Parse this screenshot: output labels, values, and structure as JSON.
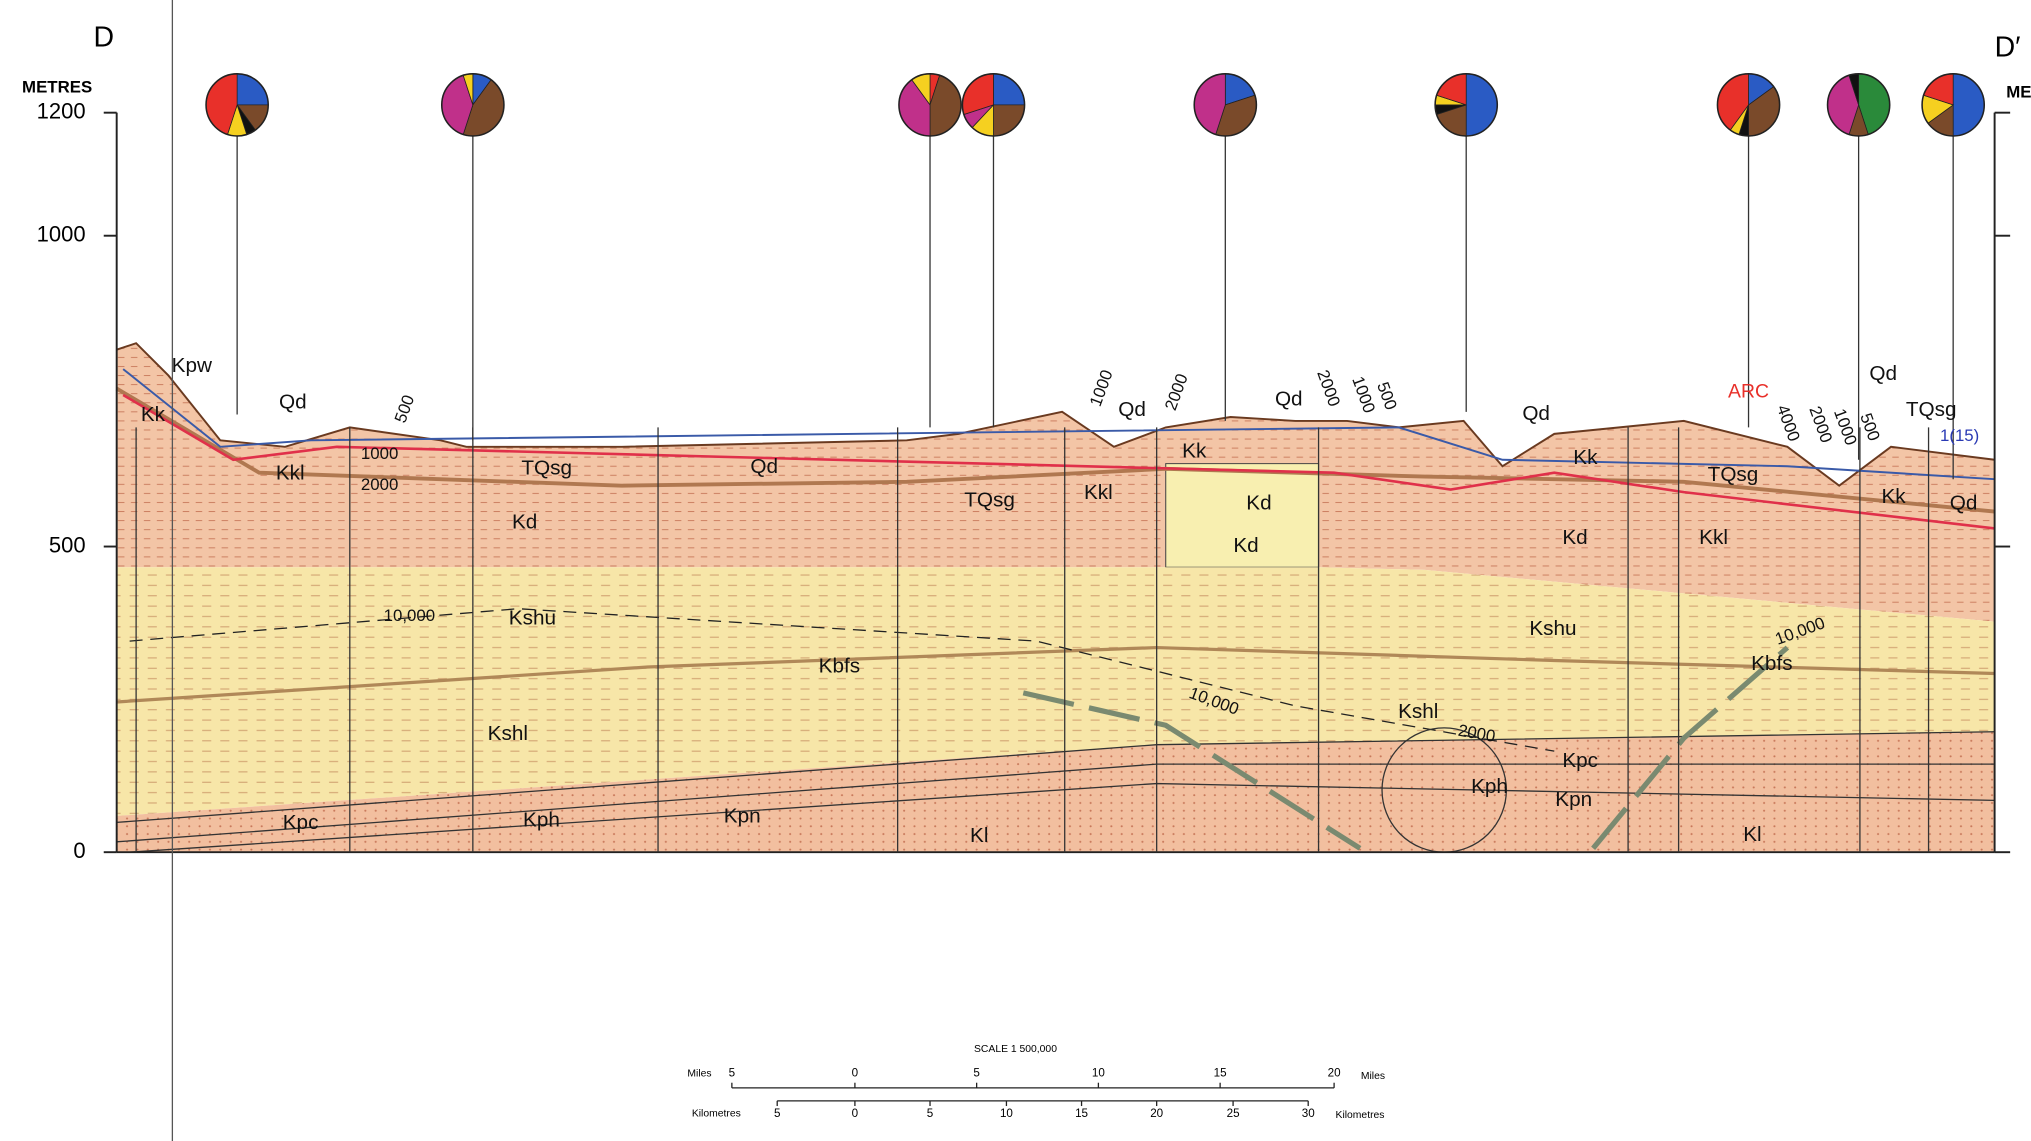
{
  "header": {
    "left_label": "D",
    "right_label": "D′",
    "axis_title": "METRES",
    "right_axis_title": "METRES"
  },
  "axis_ticks": [
    "1200",
    "1000",
    "500",
    "0"
  ],
  "pies": [
    {
      "values": [
        25,
        15,
        5,
        10,
        45
      ],
      "colors": [
        "#2a5bc4",
        "#7a4a2a",
        "#111111",
        "#f5d020",
        "#e8302a"
      ]
    },
    {
      "values": [
        10,
        45,
        40,
        5
      ],
      "colors": [
        "#2a5bc4",
        "#7a4a2a",
        "#c0308a",
        "#f5d020"
      ]
    },
    {
      "values": [
        5,
        45,
        40,
        10
      ],
      "colors": [
        "#e8302a",
        "#7a4a2a",
        "#c0308a",
        "#f5d020"
      ]
    },
    {
      "values": [
        25,
        25,
        12,
        8,
        30
      ],
      "colors": [
        "#2a5bc4",
        "#7a4a2a",
        "#f5d020",
        "#c0308a",
        "#e8302a"
      ]
    },
    {
      "values": [
        20,
        35,
        45
      ],
      "colors": [
        "#2a5bc4",
        "#7a4a2a",
        "#c0308a"
      ]
    },
    {
      "values": [
        50,
        20,
        5,
        5,
        20
      ],
      "colors": [
        "#2a5bc4",
        "#7a4a2a",
        "#111111",
        "#f5d020",
        "#e8302a"
      ]
    },
    {
      "values": [
        15,
        35,
        5,
        5,
        40
      ],
      "colors": [
        "#2a5bc4",
        "#7a4a2a",
        "#111111",
        "#f5d020",
        "#e8302a"
      ]
    },
    {
      "values": [
        45,
        10,
        40,
        5
      ],
      "colors": [
        "#2a8a3a",
        "#7a4a2a",
        "#c0308a",
        "#111111"
      ]
    },
    {
      "values": [
        50,
        15,
        15,
        20
      ],
      "colors": [
        "#2a5bc4",
        "#7a4a2a",
        "#f5d020",
        "#e8302a"
      ]
    }
  ],
  "labels": [
    "Kpw",
    "Kk",
    "Qd",
    "Kkl",
    "1000",
    "2000",
    "500",
    "TQsg",
    "Kd",
    "Qd",
    "TQsg",
    "Kkl",
    "Qd",
    "1000",
    "2000",
    "Kk",
    "Qd",
    "2000",
    "1000",
    "500",
    "Kd",
    "Kd",
    "Qd",
    "Kk",
    "Kd",
    "ARC",
    "4000",
    "2000",
    "1000",
    "500",
    "Qd",
    "TQsg",
    "1(15)",
    "TQsg",
    "Kk",
    "Qd",
    "Kkl",
    "10,000",
    "Kshu",
    "Kbfs",
    "Kshl",
    "10,000",
    "Kshu",
    "10,000",
    "Kbfs",
    "Kshl",
    "2000",
    "Kpc",
    "Kph",
    "Kpn",
    "Kl",
    "Kpc",
    "Kph",
    "Kpn",
    "Kl"
  ],
  "scale": {
    "title": "SCALE 1 500,000",
    "miles_unit": "Miles",
    "miles_ticks": [
      "5",
      "0",
      "5",
      "10",
      "15",
      "20"
    ],
    "km_unit": "Kilometres",
    "km_ticks": [
      "5",
      "0",
      "5",
      "10",
      "15",
      "20",
      "25",
      "30"
    ]
  }
}
